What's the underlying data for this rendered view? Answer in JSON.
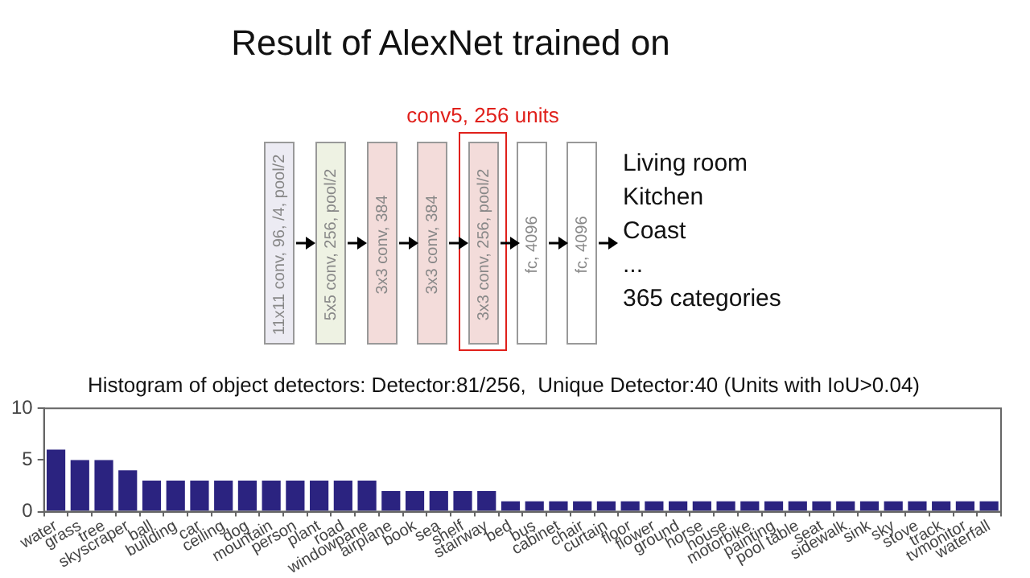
{
  "chart_data": [
    {
      "type": "other",
      "title": "Result of AlexNet trained on",
      "annotations": [
        "11x11 conv, 96, /4, pool/2",
        "5x5 conv, 256, pool/2",
        "3x3 conv, 384",
        "3x3 conv, 384",
        "3x3 conv, 256, pool/2",
        "fc, 4096",
        "fc, 4096",
        "conv5, 256 units",
        "Living room",
        "Kitchen",
        "Coast",
        "...",
        "365 categories"
      ]
    },
    {
      "type": "bar",
      "title": "Histogram of object detectors: Detector:81/256,  Unique Detector:40 (Units with IoU>0.04)",
      "categories": [
        "water",
        "grass",
        "tree",
        "skyscraper",
        "ball",
        "building",
        "car",
        "ceiling",
        "dog",
        "mountain",
        "person",
        "plant",
        "road",
        "windowpane",
        "airplane",
        "book",
        "sea",
        "shelf",
        "stairway",
        "bed",
        "bus",
        "cabinet",
        "chair",
        "curtain",
        "floor",
        "flower",
        "ground",
        "horse",
        "house",
        "motorbike",
        "painting",
        "pool table",
        "seat",
        "sidewalk",
        "sink",
        "sky",
        "stove",
        "track",
        "tvmonitor",
        "waterfall"
      ],
      "values": [
        6,
        5,
        5,
        4,
        3,
        3,
        3,
        3,
        3,
        3,
        3,
        3,
        3,
        3,
        2,
        2,
        2,
        2,
        2,
        1,
        1,
        1,
        1,
        1,
        1,
        1,
        1,
        1,
        1,
        1,
        1,
        1,
        1,
        1,
        1,
        1,
        1,
        1,
        1,
        1
      ],
      "color": "#2b2380",
      "ylim": [
        0,
        10
      ],
      "yticks": [
        0,
        5,
        10
      ],
      "grid": false,
      "legend": false
    }
  ]
}
